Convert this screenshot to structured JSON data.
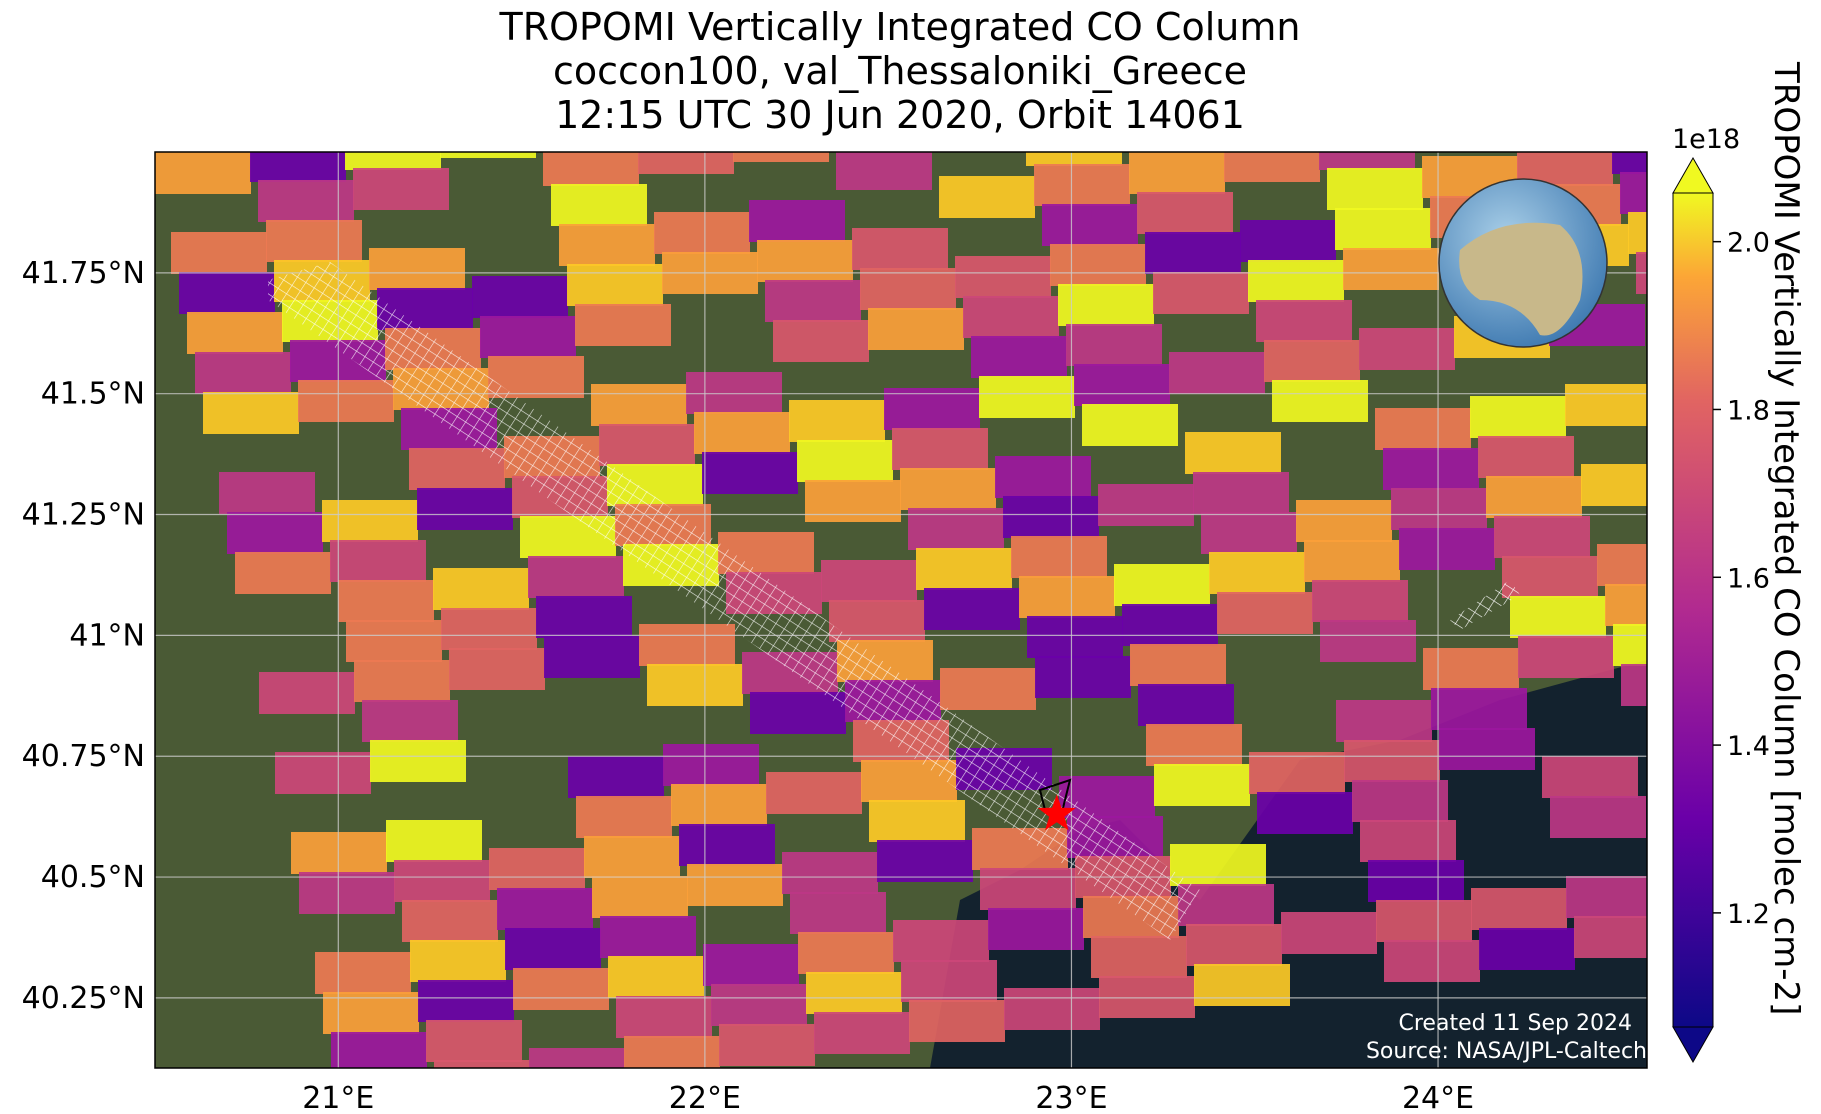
{
  "title": [
    "TROPOMI Vertically Integrated CO Column",
    "coccon100, val_Thessaloniki_Greece",
    "12:15 UTC 30 Jun 2020, Orbit 14061"
  ],
  "map": {
    "xlim": [
      20.5,
      24.57
    ],
    "ylim": [
      40.105,
      42.0
    ],
    "xticks": [
      {
        "value": 21,
        "label": "21°E"
      },
      {
        "value": 22,
        "label": "22°E"
      },
      {
        "value": 23,
        "label": "23°E"
      },
      {
        "value": 24,
        "label": "24°E"
      }
    ],
    "yticks": [
      {
        "value": 40.25,
        "label": "40.25°N"
      },
      {
        "value": 40.5,
        "label": "40.5°N"
      },
      {
        "value": 40.75,
        "label": "40.75°N"
      },
      {
        "value": 41,
        "label": "41°N"
      },
      {
        "value": 41.25,
        "label": "41.25°N"
      },
      {
        "value": 41.5,
        "label": "41.5°N"
      },
      {
        "value": 41.75,
        "label": "41.75°N"
      }
    ],
    "grid": true,
    "site": {
      "lon": 22.96,
      "lat": 40.63
    }
  },
  "colorbar": {
    "label": "TROPOMI Vertically Integrated CO Column [molec cm-2]",
    "offset": "1e18",
    "lim": [
      1.064,
      2.058
    ],
    "ticks": [
      1.2,
      1.4,
      1.6,
      1.8,
      {
        "value": 2.0,
        "label": "2.0"
      }
    ]
  },
  "credits": [
    "Created 11 Sep 2024",
    "Source: NASA/JPL-Caltech"
  ]
}
